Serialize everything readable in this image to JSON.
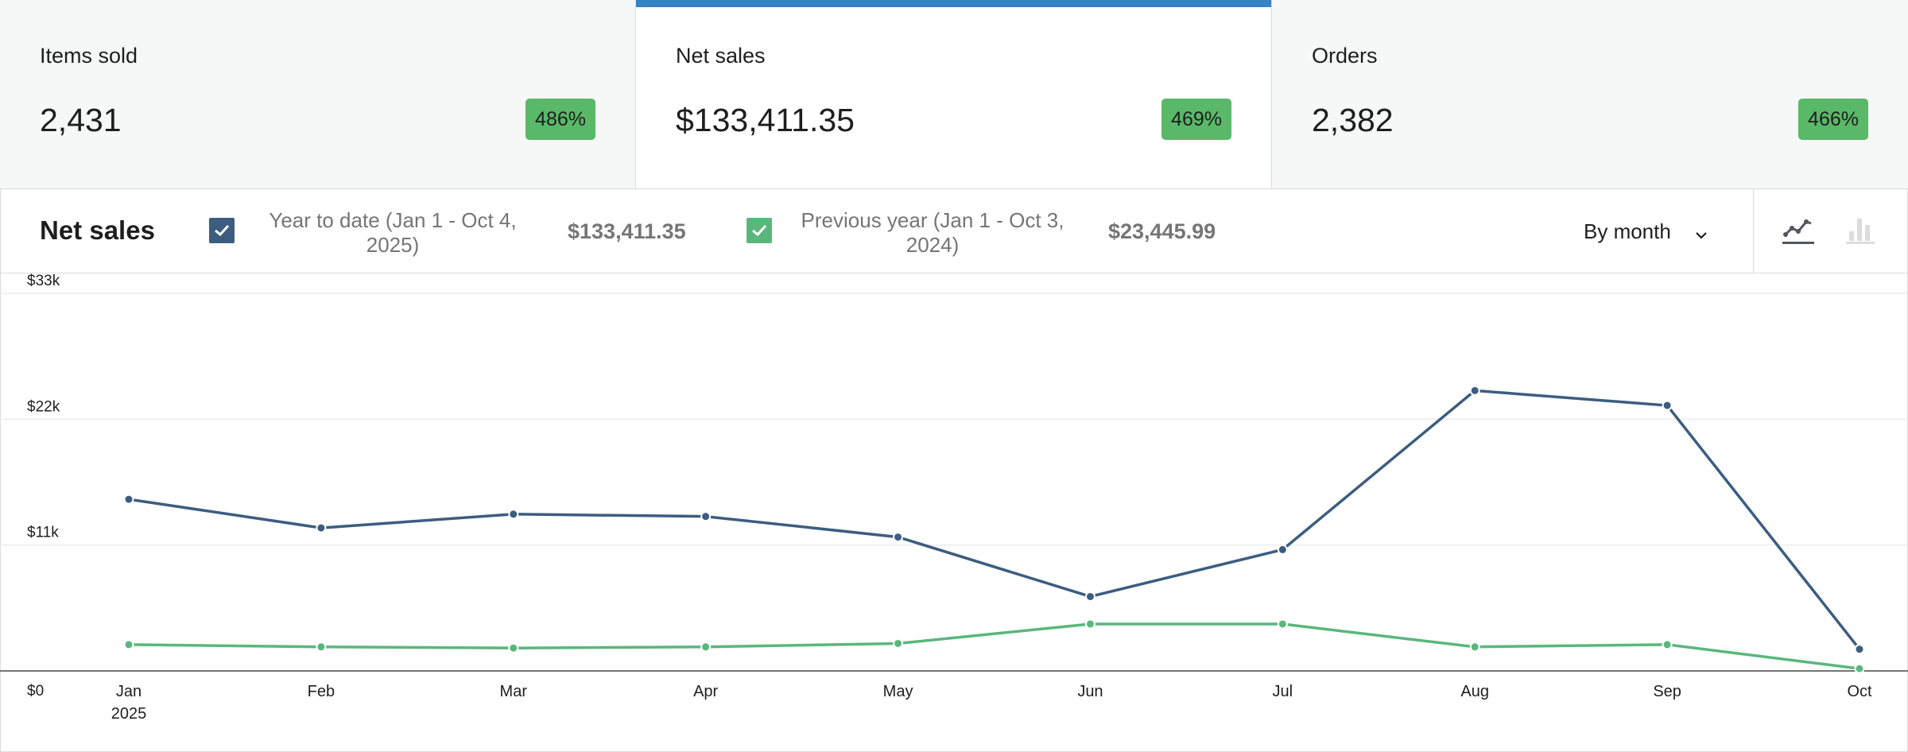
{
  "summary_tiles": [
    {
      "label": "Items sold",
      "value": "2,431",
      "change": "486%",
      "selected": false
    },
    {
      "label": "Net sales",
      "value": "$133,411.35",
      "change": "469%",
      "selected": true
    },
    {
      "label": "Orders",
      "value": "2,382",
      "change": "466%",
      "selected": false
    }
  ],
  "legend": {
    "title": "Net sales",
    "current": {
      "label_line1": "Year to date (Jan 1 - Oct 4,",
      "label_line2": "2025)",
      "total": "$133,411.35",
      "checked": true,
      "color": "#3c5d80"
    },
    "previous": {
      "label_line1": "Previous year (Jan 1 - Oct 3,",
      "label_line2": "2024)",
      "total": "$23,445.99",
      "checked": true,
      "color": "#5ab77c"
    },
    "interval": "By month",
    "chart_type_buttons": [
      "line-chart-icon",
      "bar-chart-icon"
    ]
  },
  "colors": {
    "accent": "#3582c4",
    "badge": "#5ab869",
    "current_series": "#3c5d80",
    "previous_series": "#5ab77c"
  },
  "chart_data": {
    "type": "line",
    "title": "Net sales",
    "categories": [
      "Jan",
      "Feb",
      "Mar",
      "Apr",
      "May",
      "Jun",
      "Jul",
      "Aug",
      "Sep",
      "Oct"
    ],
    "x_sublabel": "2025",
    "y_ticks": [
      0,
      11000,
      22000,
      33000
    ],
    "y_tick_labels": [
      "$0",
      "$11k",
      "$22k",
      "$33k"
    ],
    "ylim": [
      0,
      33000
    ],
    "grid": true,
    "series": [
      {
        "name": "Year to date (Jan 1 - Oct 4, 2025)",
        "color": "#3c5d80",
        "values": [
          15000,
          12500,
          13700,
          13500,
          11700,
          6500,
          10600,
          24500,
          23200,
          1900
        ]
      },
      {
        "name": "Previous year (Jan 1 - Oct 3, 2024)",
        "color": "#5ab77c",
        "values": [
          2300,
          2100,
          2000,
          2100,
          2400,
          4100,
          4100,
          2100,
          2300,
          200
        ]
      }
    ]
  }
}
